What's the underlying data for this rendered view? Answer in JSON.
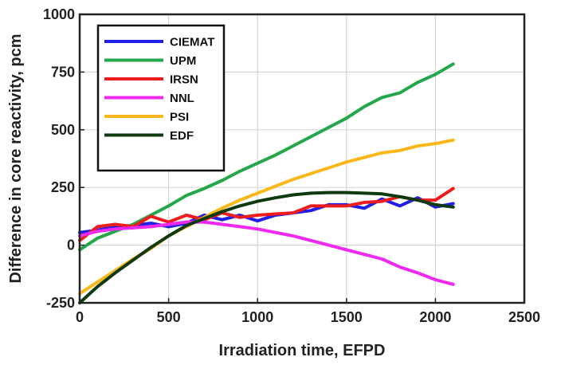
{
  "chart_data": {
    "type": "line",
    "title": "",
    "xlabel": "Irradiation time, EFPD",
    "ylabel": "Difference in core reactivity, pcm",
    "xlim": [
      0,
      2500
    ],
    "ylim": [
      -250,
      1000
    ],
    "xticks": [
      0,
      500,
      1000,
      1500,
      2000,
      2500
    ],
    "yticks": [
      -250,
      0,
      250,
      500,
      750,
      1000
    ],
    "xtick_labels": [
      "0",
      "500",
      "1000",
      "1500",
      "2000",
      "2500"
    ],
    "ytick_labels": [
      "-250",
      "0",
      "250",
      "500",
      "750",
      "1000"
    ],
    "grid": true,
    "legend_position": "top-left",
    "series": [
      {
        "name": "CIEMAT",
        "color": "#1f1fe6",
        "x": [
          0,
          100,
          200,
          300,
          400,
          500,
          600,
          700,
          800,
          900,
          1000,
          1100,
          1200,
          1300,
          1400,
          1500,
          1600,
          1700,
          1800,
          1900,
          2000,
          2100
        ],
        "y": [
          55,
          65,
          80,
          85,
          95,
          80,
          95,
          130,
          110,
          130,
          105,
          130,
          140,
          150,
          175,
          175,
          160,
          200,
          170,
          205,
          165,
          180
        ]
      },
      {
        "name": "UPM",
        "color": "#22a84a",
        "x": [
          0,
          100,
          200,
          300,
          400,
          500,
          600,
          700,
          800,
          900,
          1000,
          1100,
          1200,
          1300,
          1400,
          1500,
          1600,
          1700,
          1800,
          1900,
          2000,
          2100
        ],
        "y": [
          -20,
          30,
          60,
          90,
          130,
          170,
          215,
          245,
          280,
          320,
          355,
          390,
          430,
          470,
          510,
          550,
          600,
          640,
          660,
          705,
          740,
          785
        ]
      },
      {
        "name": "IRSN",
        "color": "#ee1c1c",
        "x": [
          0,
          100,
          200,
          300,
          400,
          500,
          600,
          700,
          800,
          900,
          1000,
          1100,
          1200,
          1300,
          1400,
          1500,
          1600,
          1700,
          1800,
          1900,
          2000,
          2100
        ],
        "y": [
          20,
          80,
          90,
          80,
          125,
          100,
          130,
          110,
          140,
          120,
          130,
          135,
          140,
          170,
          170,
          170,
          185,
          190,
          210,
          195,
          195,
          245
        ]
      },
      {
        "name": "NNL",
        "color": "#f028f0",
        "x": [
          0,
          100,
          200,
          300,
          400,
          500,
          600,
          700,
          800,
          900,
          1000,
          1100,
          1200,
          1300,
          1400,
          1500,
          1600,
          1700,
          1800,
          1900,
          2000,
          2100
        ],
        "y": [
          40,
          60,
          70,
          75,
          80,
          90,
          100,
          100,
          90,
          80,
          70,
          55,
          40,
          20,
          0,
          -20,
          -40,
          -60,
          -95,
          -120,
          -150,
          -170
        ]
      },
      {
        "name": "PSI",
        "color": "#fab719",
        "x": [
          0,
          100,
          200,
          300,
          400,
          500,
          600,
          700,
          800,
          900,
          1000,
          1100,
          1200,
          1300,
          1400,
          1500,
          1600,
          1700,
          1800,
          1900,
          2000,
          2100
        ],
        "y": [
          -210,
          -160,
          -110,
          -60,
          -15,
          40,
          80,
          120,
          160,
          195,
          225,
          255,
          285,
          310,
          335,
          360,
          380,
          400,
          410,
          430,
          440,
          455
        ]
      },
      {
        "name": "EDF",
        "color": "#0f3a0f",
        "x": [
          0,
          100,
          200,
          300,
          400,
          500,
          600,
          700,
          800,
          900,
          1000,
          1100,
          1200,
          1300,
          1400,
          1500,
          1600,
          1700,
          1800,
          1900,
          2000,
          2100
        ],
        "y": [
          -250,
          -180,
          -120,
          -65,
          -10,
          40,
          85,
          115,
          145,
          170,
          190,
          205,
          218,
          225,
          228,
          228,
          225,
          222,
          210,
          195,
          175,
          165
        ]
      }
    ]
  }
}
